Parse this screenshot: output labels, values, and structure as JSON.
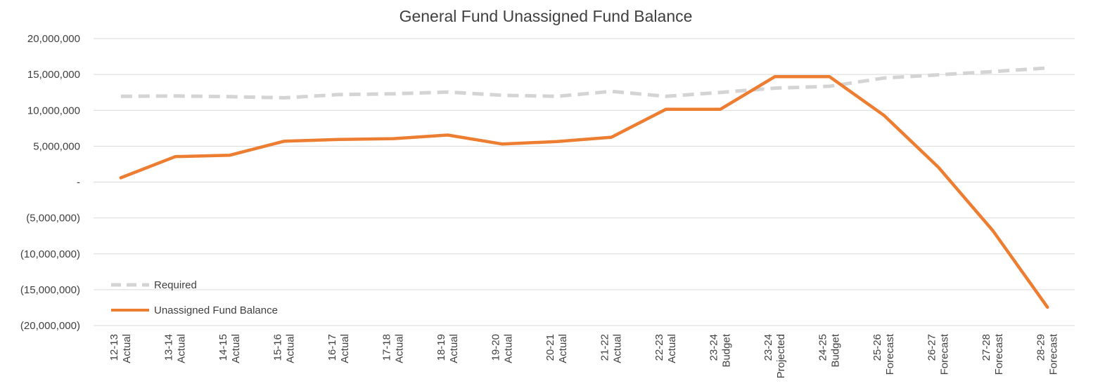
{
  "chart_data": {
    "type": "line",
    "title": "General Fund Unassigned Fund Balance",
    "xlabel": "",
    "ylabel": "",
    "ylim": [
      -20000000,
      20000000
    ],
    "yticks": [
      20000000,
      15000000,
      10000000,
      5000000,
      0,
      -5000000,
      -10000000,
      -15000000,
      -20000000
    ],
    "ytick_labels": [
      "20,000,000",
      "15,000,000",
      "10,000,000",
      "5,000,000",
      "-",
      "(5,000,000)",
      "(10,000,000)",
      "(15,000,000)",
      "(20,000,000)"
    ],
    "grid": true,
    "legend_position": "bottom-left",
    "categories": [
      {
        "year": "12-13",
        "type": "Actual"
      },
      {
        "year": "13-14",
        "type": "Actual"
      },
      {
        "year": "14-15",
        "type": "Actual"
      },
      {
        "year": "15-16",
        "type": "Actual"
      },
      {
        "year": "16-17",
        "type": "Actual"
      },
      {
        "year": "17-18",
        "type": "Actual"
      },
      {
        "year": "18-19",
        "type": "Actual"
      },
      {
        "year": "19-20",
        "type": "Actual"
      },
      {
        "year": "20-21",
        "type": "Actual"
      },
      {
        "year": "21-22",
        "type": "Actual"
      },
      {
        "year": "22-23",
        "type": "Actual"
      },
      {
        "year": "23-24",
        "type": "Budget"
      },
      {
        "year": "23-24",
        "type": "Projected"
      },
      {
        "year": "24-25",
        "type": "Budget"
      },
      {
        "year": "25-26",
        "type": "Forecast"
      },
      {
        "year": "26-27",
        "type": "Forecast"
      },
      {
        "year": "27-28",
        "type": "Forecast"
      },
      {
        "year": "28-29",
        "type": "Forecast"
      }
    ],
    "series": [
      {
        "name": "Required",
        "style": "dashed",
        "color": "#d4d4d4",
        "values": [
          11950000,
          12000000,
          11900000,
          11750000,
          12200000,
          12300000,
          12550000,
          12100000,
          11950000,
          12650000,
          11950000,
          12500000,
          13100000,
          13350000,
          14500000,
          14950000,
          15400000,
          15900000
        ]
      },
      {
        "name": "Unassigned Fund Balance",
        "style": "solid",
        "color": "#ed7d31",
        "values": [
          600000,
          3550000,
          3750000,
          5700000,
          5950000,
          6050000,
          6550000,
          5300000,
          5650000,
          6250000,
          10150000,
          10150000,
          14700000,
          14700000,
          9300000,
          2050000,
          -6800000,
          -17450000
        ]
      }
    ]
  }
}
